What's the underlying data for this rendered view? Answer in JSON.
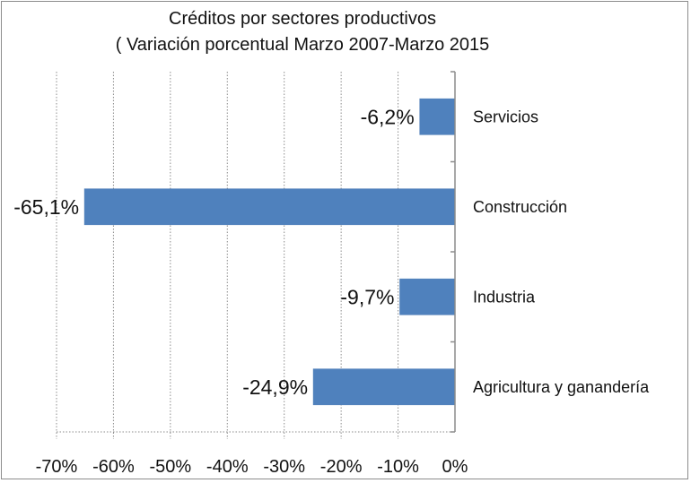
{
  "chart_data": {
    "type": "bar",
    "orientation": "horizontal",
    "title": "Créditos por sectores productivos",
    "subtitle": "( Variación porcentual Marzo 2007-Marzo 2015",
    "categories": [
      "Servicios",
      "Construcción",
      "Industria",
      "Agricultura y ganandería"
    ],
    "values": [
      -6.2,
      -65.1,
      -9.7,
      -24.9
    ],
    "data_labels": [
      "-6,2%",
      "-65,1%",
      "-9,7%",
      "-24,9%"
    ],
    "xlabel": "",
    "ylabel": "",
    "xlim": [
      -70,
      0
    ],
    "x_ticks": [
      -70,
      -60,
      -50,
      -40,
      -30,
      -20,
      -10,
      0
    ],
    "x_tick_labels": [
      "-70%",
      "-60%",
      "-50%",
      "-40%",
      "-30%",
      "-20%",
      "-10%",
      "0%"
    ],
    "grid": "vertical dotted",
    "legend": "none",
    "bar_color": "#4f81bd"
  }
}
